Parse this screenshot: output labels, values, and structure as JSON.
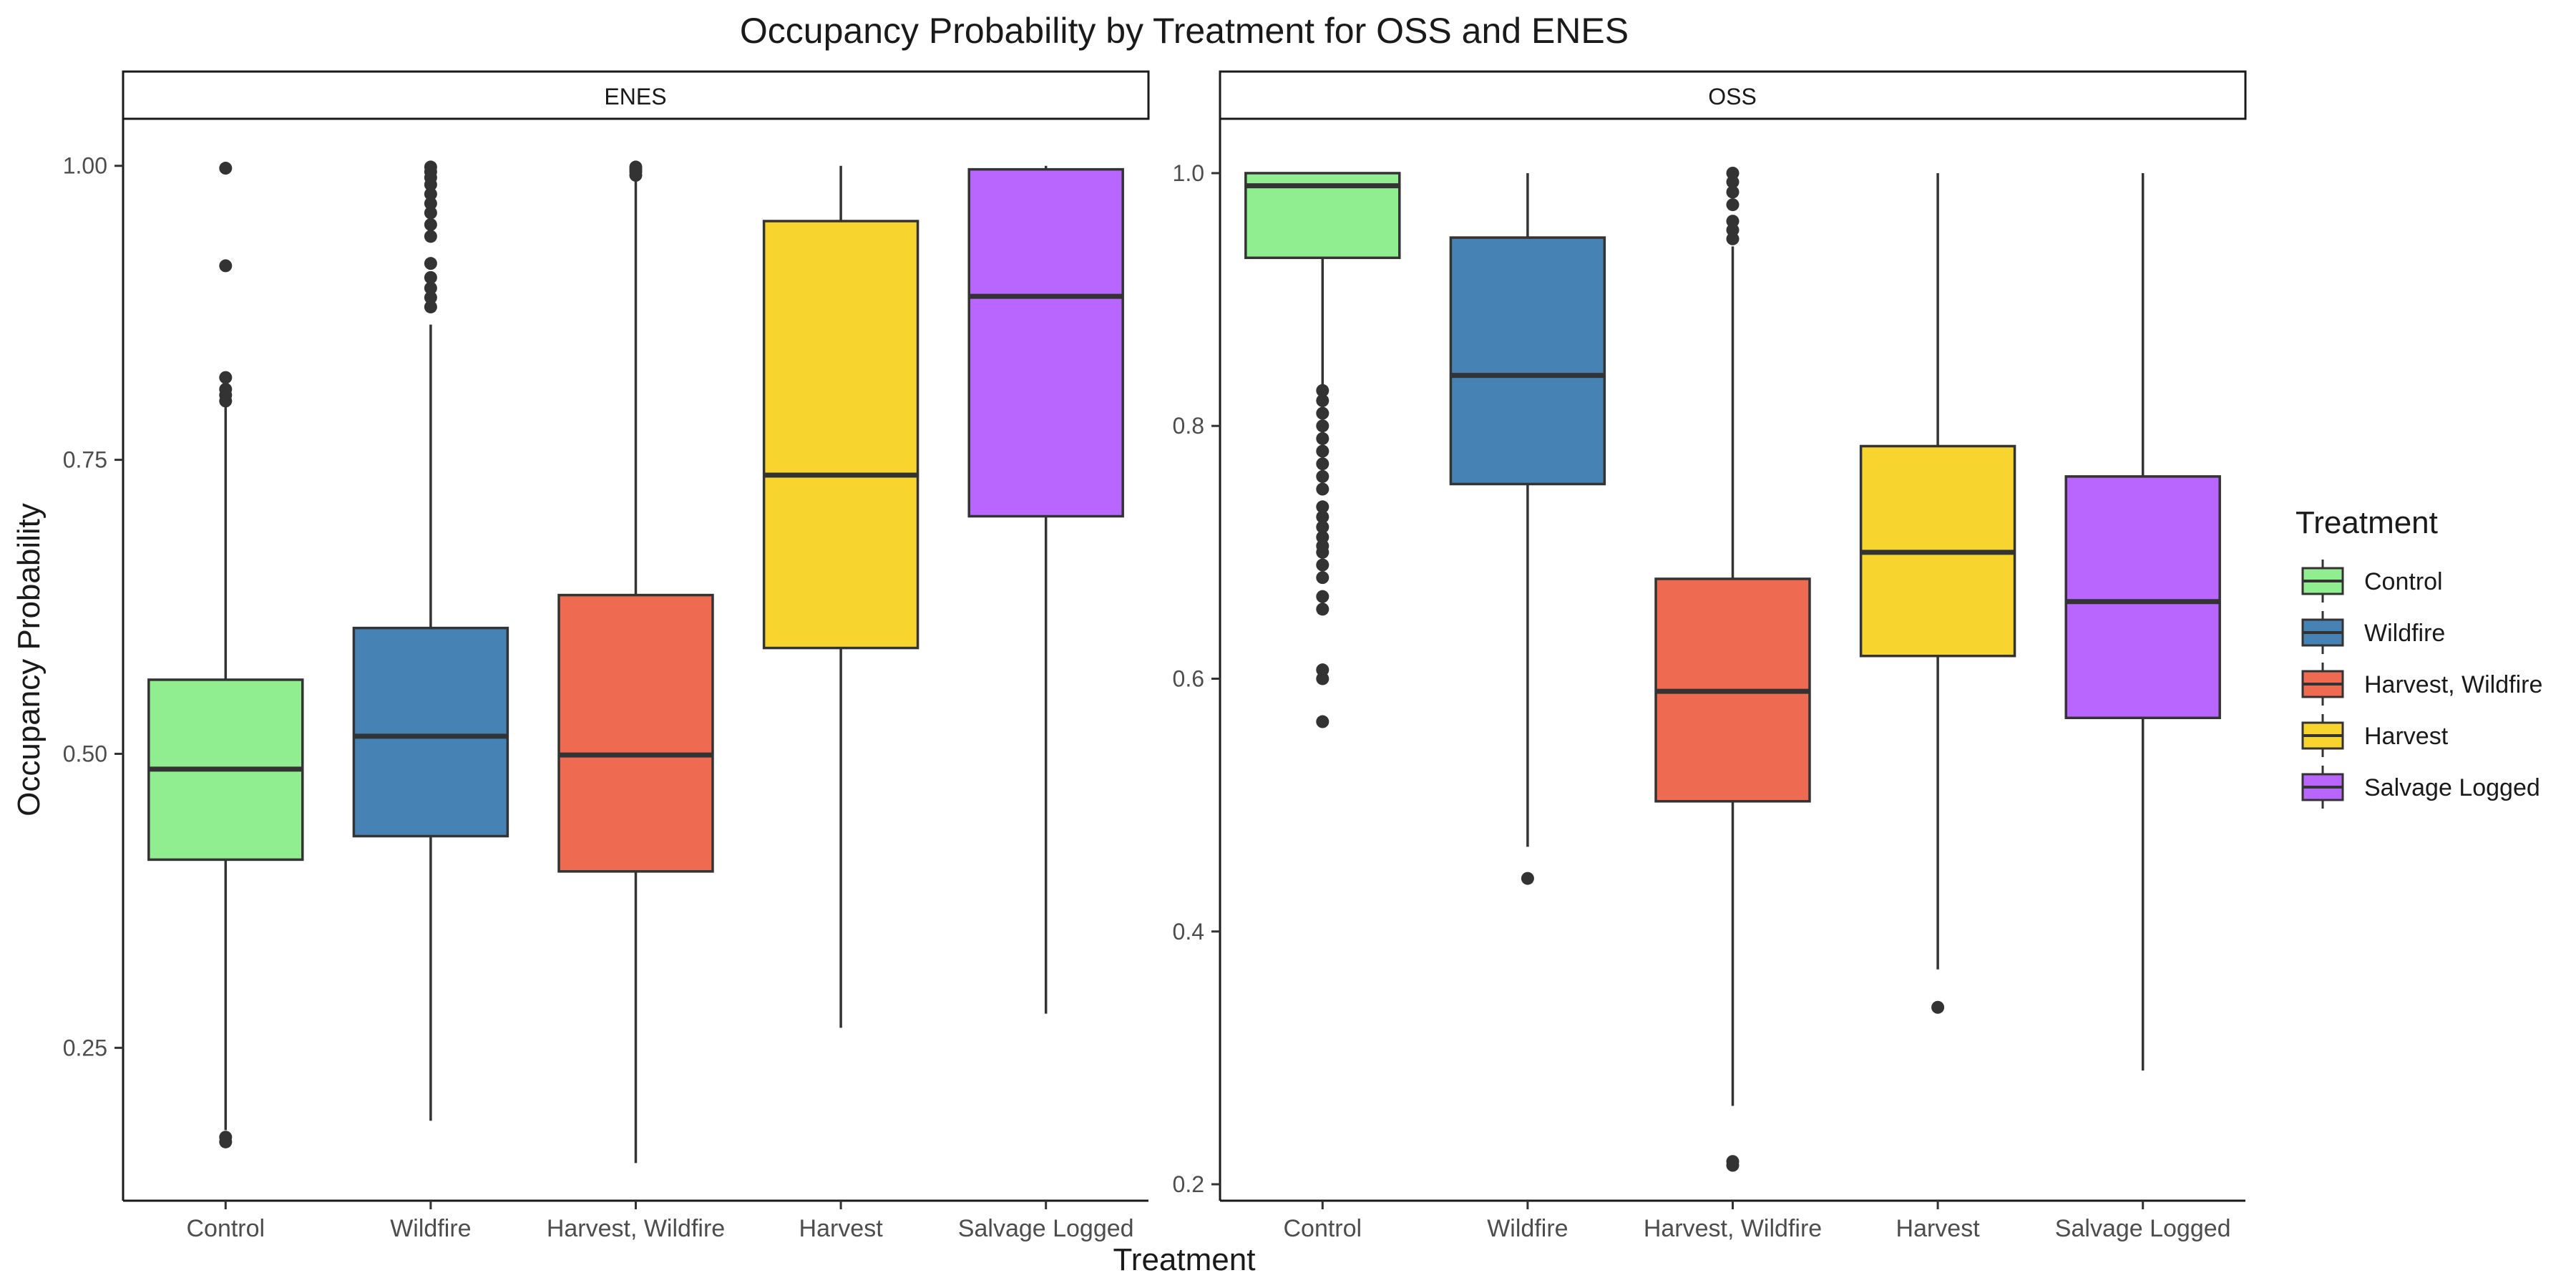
{
  "chart_data": {
    "type": "boxplot",
    "title": "Occupancy Probability by Treatment for OSS and ENES",
    "xlabel": "Treatment",
    "ylabel": "Occupancy Probability",
    "legend": {
      "title": "Treatment",
      "placement": "right",
      "entries": [
        "Control",
        "Wildfire",
        "Harvest, Wildfire",
        "Harvest",
        "Salvage Logged"
      ]
    },
    "colors": {
      "Control": "#90EE90",
      "Wildfire": "#4682B4",
      "Harvest, Wildfire": "#EE6A50",
      "Harvest": "#F8D52E",
      "Salvage Logged": "#B866FF"
    },
    "categories": [
      "Control",
      "Wildfire",
      "Harvest, Wildfire",
      "Harvest",
      "Salvage Logged"
    ],
    "panels": [
      {
        "name": "ENES",
        "ylim": [
          0.12,
          1.04
        ],
        "yticks": [
          0.25,
          0.5,
          0.75,
          1.0
        ],
        "ytick_labels": [
          "0.25",
          "0.50",
          "0.75",
          "1.00"
        ],
        "boxes": [
          {
            "category": "Control",
            "whisker_low": 0.18,
            "q1": 0.41,
            "median": 0.487,
            "q3": 0.563,
            "whisker_high": 0.795,
            "outliers": [
              0.17,
              0.174,
              0.8,
              0.805,
              0.81,
              0.82,
              0.915,
              0.998
            ]
          },
          {
            "category": "Wildfire",
            "whisker_low": 0.188,
            "q1": 0.43,
            "median": 0.515,
            "q3": 0.607,
            "whisker_high": 0.865,
            "outliers": [
              0.88,
              0.888,
              0.896,
              0.905,
              0.917,
              0.94,
              0.95,
              0.96,
              0.968,
              0.976,
              0.984,
              0.99,
              0.995,
              0.999
            ]
          },
          {
            "category": "Harvest, Wildfire",
            "whisker_low": 0.152,
            "q1": 0.4,
            "median": 0.499,
            "q3": 0.635,
            "whisker_high": 0.99,
            "outliers": [
              0.992,
              0.995,
              0.997,
              0.999
            ]
          },
          {
            "category": "Harvest",
            "whisker_low": 0.267,
            "q1": 0.59,
            "median": 0.737,
            "q3": 0.953,
            "whisker_high": 1.0,
            "outliers": []
          },
          {
            "category": "Salvage Logged",
            "whisker_low": 0.279,
            "q1": 0.702,
            "median": 0.889,
            "q3": 0.997,
            "whisker_high": 1.0,
            "outliers": []
          }
        ]
      },
      {
        "name": "OSS",
        "ylim": [
          0.187,
          1.043
        ],
        "yticks": [
          0.2,
          0.4,
          0.6,
          0.8,
          1.0
        ],
        "ytick_labels": [
          "0.2",
          "0.4",
          "0.6",
          "0.8",
          "1.0"
        ],
        "boxes": [
          {
            "category": "Control",
            "whisker_low": 0.83,
            "q1": 0.933,
            "median": 0.99,
            "q3": 1.0,
            "whisker_high": 1.0,
            "outliers": [
              0.566,
              0.6,
              0.607,
              0.655,
              0.665,
              0.68,
              0.69,
              0.7,
              0.705,
              0.712,
              0.72,
              0.728,
              0.736,
              0.75,
              0.76,
              0.77,
              0.78,
              0.79,
              0.8,
              0.81,
              0.82,
              0.828
            ]
          },
          {
            "category": "Wildfire",
            "whisker_low": 0.467,
            "q1": 0.754,
            "median": 0.84,
            "q3": 0.949,
            "whisker_high": 1.0,
            "outliers": [
              0.442
            ]
          },
          {
            "category": "Harvest, Wildfire",
            "whisker_low": 0.262,
            "q1": 0.503,
            "median": 0.59,
            "q3": 0.679,
            "whisker_high": 0.942,
            "outliers": [
              0.215,
              0.218,
              0.948,
              0.955,
              0.962,
              0.975,
              0.985,
              0.993,
              1.0
            ]
          },
          {
            "category": "Harvest",
            "whisker_low": 0.37,
            "q1": 0.618,
            "median": 0.7,
            "q3": 0.784,
            "whisker_high": 1.0,
            "outliers": [
              0.34
            ]
          },
          {
            "category": "Salvage Logged",
            "whisker_low": 0.29,
            "q1": 0.569,
            "median": 0.661,
            "q3": 0.76,
            "whisker_high": 1.0,
            "outliers": []
          }
        ]
      }
    ]
  }
}
